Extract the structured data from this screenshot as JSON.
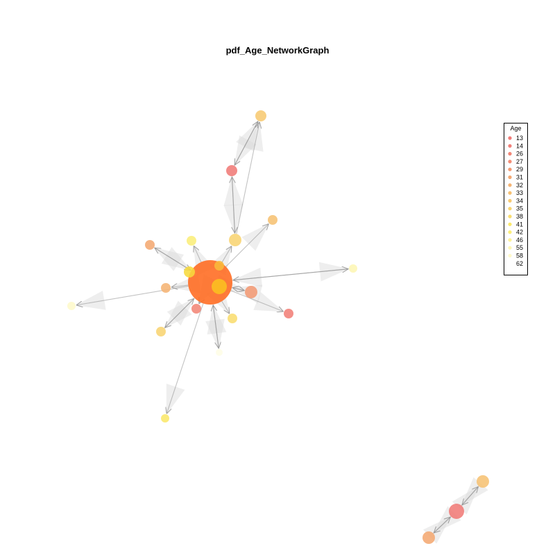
{
  "title": "pdf_Age_NetworkGraph",
  "legend": {
    "title": "Age",
    "entries": [
      {
        "label": "13",
        "color": "#f07b78"
      },
      {
        "label": "14",
        "color": "#f17f78"
      },
      {
        "label": "26",
        "color": "#f28676"
      },
      {
        "label": "27",
        "color": "#f38d76"
      },
      {
        "label": "29",
        "color": "#f39a74"
      },
      {
        "label": "31",
        "color": "#f4a872"
      },
      {
        "label": "32",
        "color": "#f5b474"
      },
      {
        "label": "33",
        "color": "#f6c173"
      },
      {
        "label": "34",
        "color": "#f7ca72"
      },
      {
        "label": "35",
        "color": "#f8d472"
      },
      {
        "label": "38",
        "color": "#f9dd6f"
      },
      {
        "label": "41",
        "color": "#fae86a"
      },
      {
        "label": "42",
        "color": "#fbee7a"
      },
      {
        "label": "46",
        "color": "#fcf29a"
      },
      {
        "label": "55",
        "color": "#fdf6b4"
      },
      {
        "label": "58",
        "color": "#fef9cb"
      },
      {
        "label": "62",
        "color": "#ffffff"
      }
    ]
  },
  "colors": {
    "hub": "#ff6a1f",
    "edge": "#8f8f8f",
    "halo": "#d9d9d9"
  }
}
